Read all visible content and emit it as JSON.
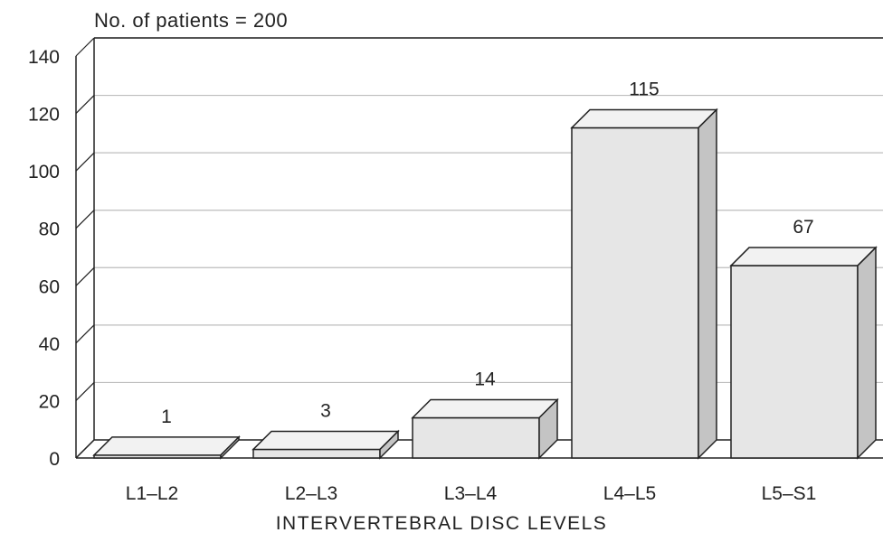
{
  "chart_data": {
    "type": "bar",
    "title": "",
    "annotation": "No. of patients = 200",
    "xlabel": "INTERVERTEBRAL DISC LEVELS",
    "ylabel": "",
    "categories": [
      "L1–L2",
      "L2–L3",
      "L3–L4",
      "L4–L5",
      "L5–S1"
    ],
    "values": [
      1,
      3,
      14,
      115,
      67
    ],
    "data_labels": [
      "1",
      "3",
      "14",
      "115",
      "67"
    ],
    "yticks": [
      0,
      20,
      40,
      60,
      80,
      100,
      120,
      140
    ],
    "ylim": [
      0,
      140
    ],
    "grid": true,
    "legend": "none",
    "style": "3d",
    "colors": {
      "bar_front": "#e6e6e6",
      "bar_top": "#f2f2f2",
      "bar_side": "#c4c4c4",
      "grid": "#bdbdbd",
      "axis": "#222222"
    }
  }
}
